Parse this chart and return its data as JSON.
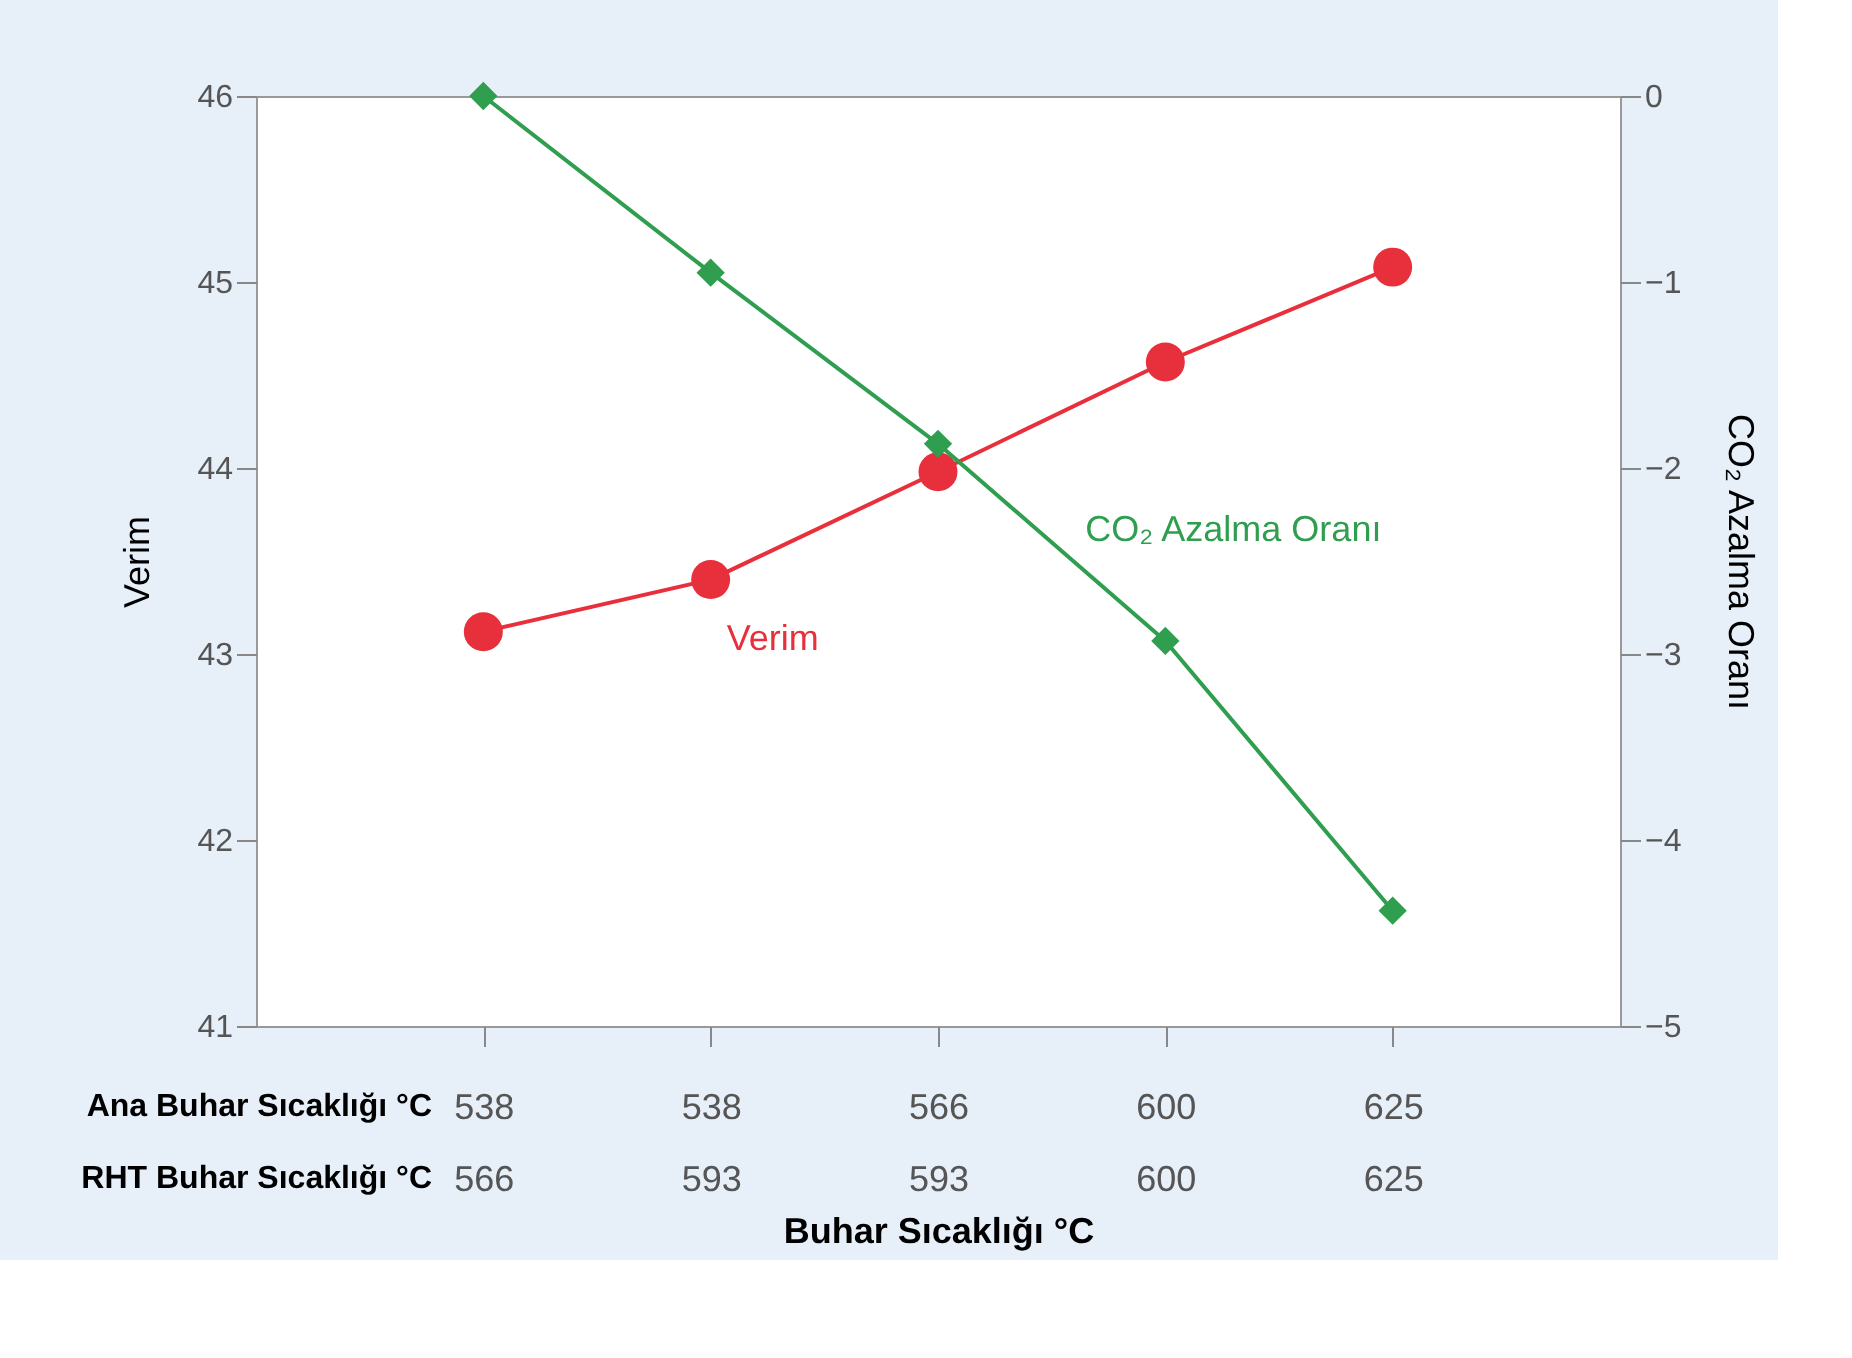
{
  "chart_data": {
    "type": "line",
    "xlabel": "Buhar Sıcaklığı °C",
    "ylabel": "Verim",
    "y2label": "CO₂ Azalma Oranı",
    "categories": [
      "538\n566",
      "538\n593",
      "566\n593",
      "600\n600",
      "625\n625"
    ],
    "series": [
      {
        "name": "Verim",
        "color": "#e8303c",
        "marker": "circle",
        "values": [
          43.12,
          43.4,
          43.98,
          44.57,
          45.08
        ]
      },
      {
        "name": "CO₂ Azalma Oranı",
        "color": "#2f9e4f",
        "marker": "diamond",
        "axis": "y2",
        "values": [
          0,
          -0.95,
          -1.87,
          -2.93,
          -4.38
        ]
      }
    ],
    "ylim": [
      41,
      46
    ],
    "yticks": [
      41,
      42,
      43,
      44,
      45,
      46
    ],
    "y2lim": [
      -5,
      0
    ],
    "y2ticks": [
      -5,
      -4,
      -3,
      -2,
      -1,
      0
    ],
    "annotations": [
      "Ana Buhar Sıcaklığı °C",
      "RHT Buhar Sıcaklığı °C"
    ],
    "grid": false,
    "line_style": "solid"
  }
}
